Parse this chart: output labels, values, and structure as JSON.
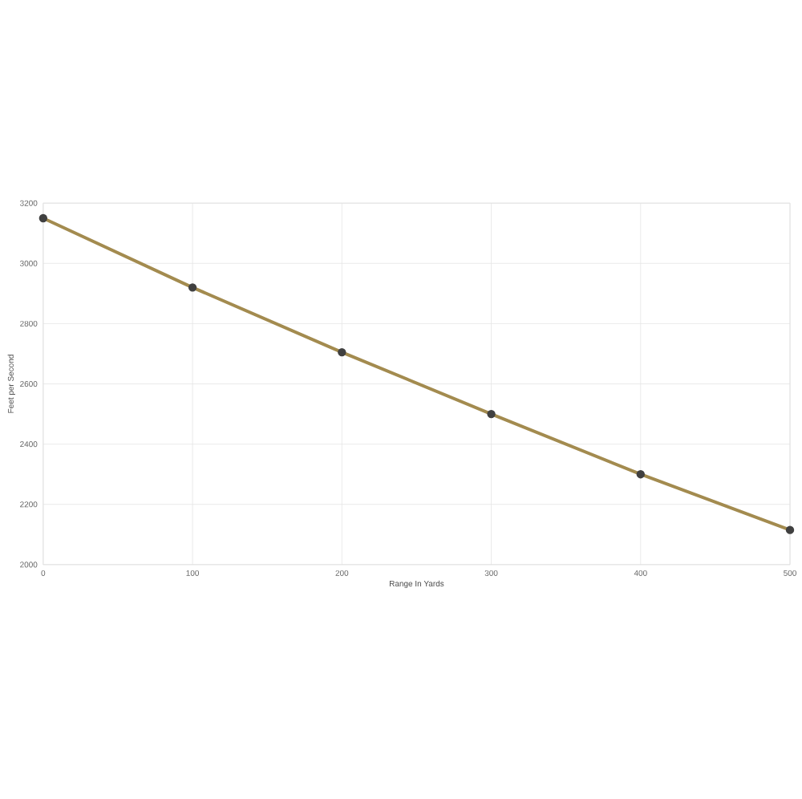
{
  "chart_data": {
    "type": "line",
    "xlabel": "Range In Yards",
    "ylabel": "Feet per Second",
    "x": [
      0,
      100,
      200,
      300,
      400,
      500
    ],
    "series": [
      {
        "color": "#a38b4f",
        "values": [
          3150,
          2920,
          2705,
          2500,
          2300,
          2115
        ]
      }
    ],
    "xlim": [
      0,
      500
    ],
    "xticks": [
      0,
      100,
      200,
      300,
      400,
      500
    ],
    "ylim": [
      2000,
      3200
    ],
    "yticks": [
      2000,
      2200,
      2400,
      2600,
      2800,
      3000,
      3200
    ],
    "grid": true,
    "marker": "circle",
    "line_style": "solid"
  }
}
